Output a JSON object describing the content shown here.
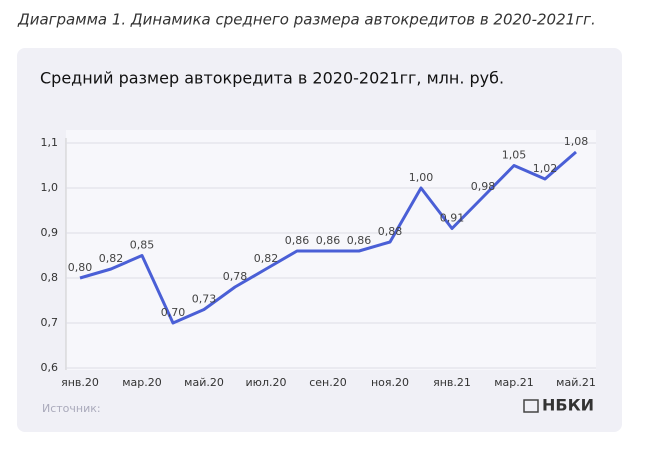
{
  "caption": "Диаграмма 1. Динамика среднего размера автокредитов в 2020-2021гг.",
  "chart_data": {
    "type": "line",
    "title": "Средний размер автокредита в 2020-2021гг,  млн. руб.",
    "categories": [
      "янв.20",
      null,
      "мар.20",
      null,
      "май.20",
      null,
      "июл.20",
      null,
      "сен.20",
      null,
      "ноя.20",
      null,
      "янв.21",
      null,
      "мар.21",
      null,
      "май.21"
    ],
    "values": [
      0.8,
      0.82,
      0.85,
      0.7,
      0.73,
      0.78,
      0.82,
      0.86,
      0.86,
      0.86,
      0.88,
      1.0,
      0.91,
      0.98,
      1.05,
      1.02,
      1.08
    ],
    "value_labels": [
      "0,80",
      "0,82",
      "0,85",
      "0,70",
      "0,73",
      "0,78",
      "0,82",
      "0,86",
      "0,86",
      "0,86",
      "0,88",
      "1,00",
      "0,91",
      "0,98",
      "1,05",
      "1,02",
      "1,08"
    ],
    "color": "#4a5fd6",
    "ylim": [
      0.6,
      1.1
    ],
    "yticks": [
      {
        "value": 0.6,
        "label": "0,6"
      },
      {
        "value": 0.7,
        "label": "0,7"
      },
      {
        "value": 0.8,
        "label": "0,8"
      },
      {
        "value": 0.9,
        "label": "0,9"
      },
      {
        "value": 1.0,
        "label": "1,0"
      },
      {
        "value": 1.1,
        "label": "1,1"
      }
    ],
    "grid": true
  },
  "source": "Источник:",
  "logo": "НБКИ"
}
